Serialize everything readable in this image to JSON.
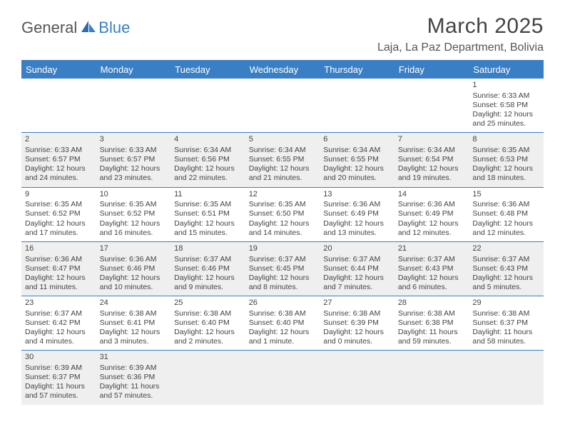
{
  "logo": {
    "part1": "General",
    "part2": "Blue"
  },
  "title": "March 2025",
  "location": "Laja, La Paz Department, Bolivia",
  "colors": {
    "accent": "#3a7fc4",
    "shade": "#efefef",
    "text": "#444444"
  },
  "dayNames": [
    "Sunday",
    "Monday",
    "Tuesday",
    "Wednesday",
    "Thursday",
    "Friday",
    "Saturday"
  ],
  "weeks": [
    {
      "shaded": false,
      "days": [
        null,
        null,
        null,
        null,
        null,
        null,
        {
          "n": "1",
          "sr": "Sunrise: 6:33 AM",
          "ss": "Sunset: 6:58 PM",
          "dl": "Daylight: 12 hours and 25 minutes."
        }
      ]
    },
    {
      "shaded": true,
      "days": [
        {
          "n": "2",
          "sr": "Sunrise: 6:33 AM",
          "ss": "Sunset: 6:57 PM",
          "dl": "Daylight: 12 hours and 24 minutes."
        },
        {
          "n": "3",
          "sr": "Sunrise: 6:33 AM",
          "ss": "Sunset: 6:57 PM",
          "dl": "Daylight: 12 hours and 23 minutes."
        },
        {
          "n": "4",
          "sr": "Sunrise: 6:34 AM",
          "ss": "Sunset: 6:56 PM",
          "dl": "Daylight: 12 hours and 22 minutes."
        },
        {
          "n": "5",
          "sr": "Sunrise: 6:34 AM",
          "ss": "Sunset: 6:55 PM",
          "dl": "Daylight: 12 hours and 21 minutes."
        },
        {
          "n": "6",
          "sr": "Sunrise: 6:34 AM",
          "ss": "Sunset: 6:55 PM",
          "dl": "Daylight: 12 hours and 20 minutes."
        },
        {
          "n": "7",
          "sr": "Sunrise: 6:34 AM",
          "ss": "Sunset: 6:54 PM",
          "dl": "Daylight: 12 hours and 19 minutes."
        },
        {
          "n": "8",
          "sr": "Sunrise: 6:35 AM",
          "ss": "Sunset: 6:53 PM",
          "dl": "Daylight: 12 hours and 18 minutes."
        }
      ]
    },
    {
      "shaded": false,
      "days": [
        {
          "n": "9",
          "sr": "Sunrise: 6:35 AM",
          "ss": "Sunset: 6:52 PM",
          "dl": "Daylight: 12 hours and 17 minutes."
        },
        {
          "n": "10",
          "sr": "Sunrise: 6:35 AM",
          "ss": "Sunset: 6:52 PM",
          "dl": "Daylight: 12 hours and 16 minutes."
        },
        {
          "n": "11",
          "sr": "Sunrise: 6:35 AM",
          "ss": "Sunset: 6:51 PM",
          "dl": "Daylight: 12 hours and 15 minutes."
        },
        {
          "n": "12",
          "sr": "Sunrise: 6:35 AM",
          "ss": "Sunset: 6:50 PM",
          "dl": "Daylight: 12 hours and 14 minutes."
        },
        {
          "n": "13",
          "sr": "Sunrise: 6:36 AM",
          "ss": "Sunset: 6:49 PM",
          "dl": "Daylight: 12 hours and 13 minutes."
        },
        {
          "n": "14",
          "sr": "Sunrise: 6:36 AM",
          "ss": "Sunset: 6:49 PM",
          "dl": "Daylight: 12 hours and 12 minutes."
        },
        {
          "n": "15",
          "sr": "Sunrise: 6:36 AM",
          "ss": "Sunset: 6:48 PM",
          "dl": "Daylight: 12 hours and 12 minutes."
        }
      ]
    },
    {
      "shaded": true,
      "days": [
        {
          "n": "16",
          "sr": "Sunrise: 6:36 AM",
          "ss": "Sunset: 6:47 PM",
          "dl": "Daylight: 12 hours and 11 minutes."
        },
        {
          "n": "17",
          "sr": "Sunrise: 6:36 AM",
          "ss": "Sunset: 6:46 PM",
          "dl": "Daylight: 12 hours and 10 minutes."
        },
        {
          "n": "18",
          "sr": "Sunrise: 6:37 AM",
          "ss": "Sunset: 6:46 PM",
          "dl": "Daylight: 12 hours and 9 minutes."
        },
        {
          "n": "19",
          "sr": "Sunrise: 6:37 AM",
          "ss": "Sunset: 6:45 PM",
          "dl": "Daylight: 12 hours and 8 minutes."
        },
        {
          "n": "20",
          "sr": "Sunrise: 6:37 AM",
          "ss": "Sunset: 6:44 PM",
          "dl": "Daylight: 12 hours and 7 minutes."
        },
        {
          "n": "21",
          "sr": "Sunrise: 6:37 AM",
          "ss": "Sunset: 6:43 PM",
          "dl": "Daylight: 12 hours and 6 minutes."
        },
        {
          "n": "22",
          "sr": "Sunrise: 6:37 AM",
          "ss": "Sunset: 6:43 PM",
          "dl": "Daylight: 12 hours and 5 minutes."
        }
      ]
    },
    {
      "shaded": false,
      "days": [
        {
          "n": "23",
          "sr": "Sunrise: 6:37 AM",
          "ss": "Sunset: 6:42 PM",
          "dl": "Daylight: 12 hours and 4 minutes."
        },
        {
          "n": "24",
          "sr": "Sunrise: 6:38 AM",
          "ss": "Sunset: 6:41 PM",
          "dl": "Daylight: 12 hours and 3 minutes."
        },
        {
          "n": "25",
          "sr": "Sunrise: 6:38 AM",
          "ss": "Sunset: 6:40 PM",
          "dl": "Daylight: 12 hours and 2 minutes."
        },
        {
          "n": "26",
          "sr": "Sunrise: 6:38 AM",
          "ss": "Sunset: 6:40 PM",
          "dl": "Daylight: 12 hours and 1 minute."
        },
        {
          "n": "27",
          "sr": "Sunrise: 6:38 AM",
          "ss": "Sunset: 6:39 PM",
          "dl": "Daylight: 12 hours and 0 minutes."
        },
        {
          "n": "28",
          "sr": "Sunrise: 6:38 AM",
          "ss": "Sunset: 6:38 PM",
          "dl": "Daylight: 11 hours and 59 minutes."
        },
        {
          "n": "29",
          "sr": "Sunrise: 6:38 AM",
          "ss": "Sunset: 6:37 PM",
          "dl": "Daylight: 11 hours and 58 minutes."
        }
      ]
    },
    {
      "shaded": true,
      "days": [
        {
          "n": "30",
          "sr": "Sunrise: 6:39 AM",
          "ss": "Sunset: 6:37 PM",
          "dl": "Daylight: 11 hours and 57 minutes."
        },
        {
          "n": "31",
          "sr": "Sunrise: 6:39 AM",
          "ss": "Sunset: 6:36 PM",
          "dl": "Daylight: 11 hours and 57 minutes."
        },
        null,
        null,
        null,
        null,
        null
      ]
    }
  ]
}
